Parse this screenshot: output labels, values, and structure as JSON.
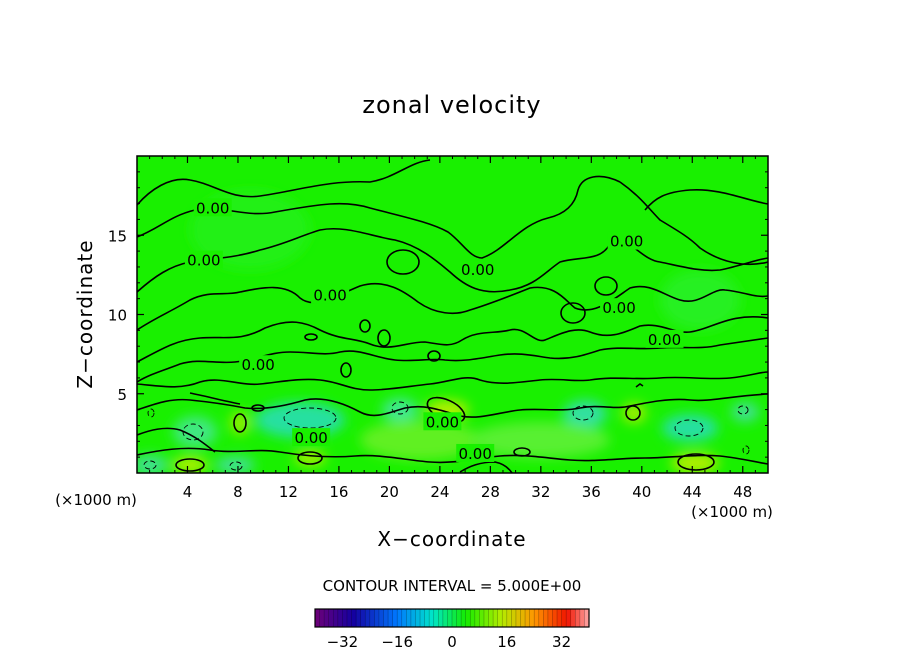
{
  "chart_data": {
    "type": "heatmap",
    "title": "zonal velocity",
    "xlabel": "X−coordinate",
    "ylabel": "Z−coordinate",
    "x_unit_left": "(×1000 m)",
    "x_unit_right": "(×1000 m)",
    "xlim": [
      0,
      50
    ],
    "ylim": [
      0,
      20
    ],
    "x_ticks": [
      4,
      8,
      12,
      16,
      20,
      24,
      28,
      32,
      36,
      40,
      44,
      48
    ],
    "x_tick_labels": [
      "4",
      "8",
      "12",
      "16",
      "20",
      "24",
      "28",
      "32",
      "36",
      "40",
      "44",
      "48"
    ],
    "y_ticks": [
      5,
      10,
      15
    ],
    "y_tick_labels": [
      "5",
      "10",
      "15"
    ],
    "contour_interval_text": "CONTOUR INTERVAL = 5.000E+00",
    "contour_labels": [
      {
        "x": 6,
        "y": 16.7,
        "text": "0.00"
      },
      {
        "x": 5.3,
        "y": 13.4,
        "text": "0.00"
      },
      {
        "x": 15.3,
        "y": 11.2,
        "text": "0.00"
      },
      {
        "x": 9.6,
        "y": 6.8,
        "text": "0.00"
      },
      {
        "x": 13.8,
        "y": 2.2,
        "text": "0.00"
      },
      {
        "x": 27,
        "y": 12.8,
        "text": "0.00"
      },
      {
        "x": 24.2,
        "y": 3.2,
        "text": "0.00"
      },
      {
        "x": 26.8,
        "y": 1.2,
        "text": "0.00"
      },
      {
        "x": 38.8,
        "y": 14.6,
        "text": "0.00"
      },
      {
        "x": 38.2,
        "y": 10.4,
        "text": "0.00"
      },
      {
        "x": 41.8,
        "y": 8.4,
        "text": "0.00"
      }
    ],
    "colorbar": {
      "ticks": [
        -32,
        -16,
        0,
        16,
        32
      ],
      "tick_labels": [
        "−32",
        "−16",
        "0",
        "16",
        "32"
      ],
      "range": [
        -40,
        40
      ]
    },
    "colors": {
      "field_base": "#19f000",
      "field_low_cyan": "#28e0a0",
      "field_low_yellow": "#b4f000"
    }
  }
}
